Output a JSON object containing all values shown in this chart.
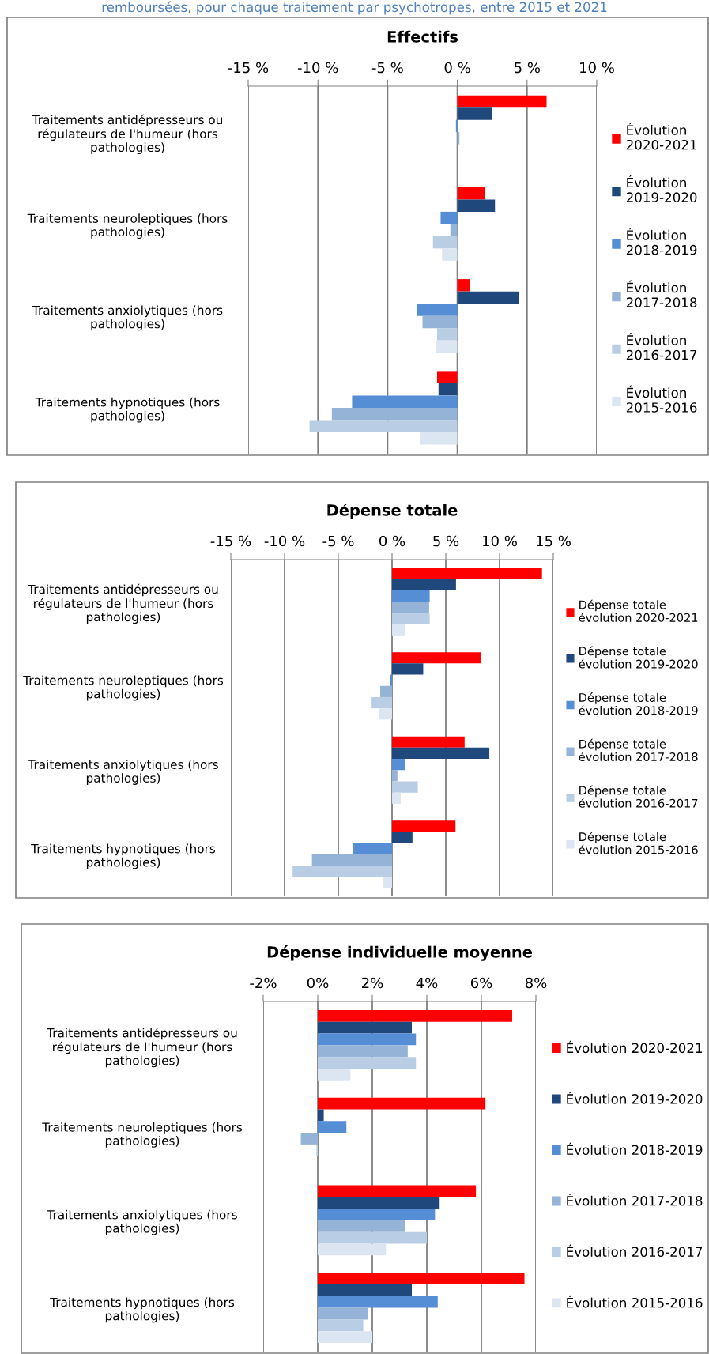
{
  "chart_data": [
    {
      "type": "bar",
      "orientation": "horizontal",
      "title": "Effectifs",
      "annotations": [
        "remboursées, pour chaque traitement par psychotropes, entre 2015 et 2021"
      ],
      "categories": [
        "Traitements antidépresseurs ou\nrégulateurs de l'humeur (hors\npathologies)",
        "Traitements neuroleptiques (hors\npathologies)",
        "Traitements anxiolytiques (hors\npathologies)",
        "Traitements hypnotiques (hors\npathologies)"
      ],
      "series": [
        {
          "name": "Évolution\n2020-2021",
          "color": "#ff0000",
          "values": [
            6.4,
            2.0,
            0.9,
            -1.45
          ]
        },
        {
          "name": "Évolution\n2019-2020",
          "color": "#1f497d",
          "values": [
            2.5,
            2.7,
            4.4,
            -1.35
          ]
        },
        {
          "name": "Évolution\n2018-2019",
          "color": "#558ed5",
          "values": [
            -0.1,
            -1.2,
            -2.9,
            -7.55
          ]
        },
        {
          "name": "Évolution\n2017-2018",
          "color": "#95b3d7",
          "values": [
            0.15,
            -0.5,
            -2.5,
            -9.0
          ]
        },
        {
          "name": "Évolution\n2016-2017",
          "color": "#b9cde5",
          "values": [
            0,
            -1.75,
            -1.45,
            -10.6
          ]
        },
        {
          "name": "Évolution\n2015-2016",
          "color": "#dce6f2",
          "values": [
            null,
            -1.1,
            -1.55,
            -2.7
          ]
        }
      ],
      "xlim": [
        -15,
        10
      ],
      "xticks": [
        {
          "value": -15,
          "label": "-15 %"
        },
        {
          "value": -10,
          "label": "-10 %"
        },
        {
          "value": -5,
          "label": "-5 %"
        },
        {
          "value": 0,
          "label": "0 %"
        },
        {
          "value": 5,
          "label": "5 %"
        },
        {
          "value": 10,
          "label": "10 %"
        }
      ],
      "grid": "x",
      "legend": "right"
    },
    {
      "type": "bar",
      "orientation": "horizontal",
      "title": "Dépense totale",
      "categories": [
        "Traitements antidépresseurs ou\nrégulateurs de l'humeur (hors\npathologies)",
        "Traitements neuroleptiques (hors\npathologies)",
        "Traitements anxiolytiques (hors\npathologies)",
        "Traitements hypnotiques (hors\npathologies)"
      ],
      "series": [
        {
          "name": "Dépense totale\névolution 2020-2021",
          "color": "#ff0000",
          "values": [
            13.95,
            8.25,
            6.75,
            5.9
          ]
        },
        {
          "name": "Dépense totale\névolution 2019-2020",
          "color": "#1f497d",
          "values": [
            5.95,
            2.9,
            9.05,
            1.9
          ]
        },
        {
          "name": "Dépense totale\névolution 2018-2019",
          "color": "#558ed5",
          "values": [
            3.5,
            -0.2,
            1.2,
            -3.6
          ]
        },
        {
          "name": "Dépense totale\névolution 2017-2018",
          "color": "#95b3d7",
          "values": [
            3.45,
            -1.1,
            0.5,
            -7.45
          ]
        },
        {
          "name": "Dépense totale\névolution 2016-2017",
          "color": "#b9cde5",
          "values": [
            3.5,
            -1.9,
            2.4,
            -9.25
          ]
        },
        {
          "name": "Dépense totale\névolution 2015-2016",
          "color": "#dce6f2",
          "values": [
            1.25,
            -1.2,
            0.8,
            -0.8
          ]
        }
      ],
      "xlim": [
        -15,
        15
      ],
      "xticks": [
        {
          "value": -15,
          "label": "-15 %"
        },
        {
          "value": -10,
          "label": "-10 %"
        },
        {
          "value": -5,
          "label": "-5 %"
        },
        {
          "value": 0,
          "label": "0 %"
        },
        {
          "value": 5,
          "label": "5 %"
        },
        {
          "value": 10,
          "label": "10 %"
        },
        {
          "value": 15,
          "label": "15 %"
        }
      ],
      "grid": "x",
      "legend": "right"
    },
    {
      "type": "bar",
      "orientation": "horizontal",
      "title": "Dépense individuelle moyenne",
      "categories": [
        "Traitements antidépresseurs ou\nrégulateurs de l'humeur (hors\npathologies)",
        "Traitements neuroleptiques (hors\npathologies)",
        "Traitements anxiolytiques (hors\npathologies)",
        "Traitements hypnotiques (hors\npathologies)"
      ],
      "series": [
        {
          "name": "Évolution 2020-2021",
          "color": "#ff0000",
          "values": [
            7.13,
            6.15,
            5.8,
            7.58
          ]
        },
        {
          "name": "Évolution 2019-2020",
          "color": "#1f497d",
          "values": [
            3.45,
            0.22,
            4.47,
            3.45
          ]
        },
        {
          "name": "Évolution 2018-2019",
          "color": "#558ed5",
          "values": [
            3.6,
            1.05,
            4.3,
            4.4
          ]
        },
        {
          "name": "Évolution 2017-2018",
          "color": "#95b3d7",
          "values": [
            3.3,
            -0.62,
            3.2,
            1.85
          ]
        },
        {
          "name": "Évolution 2016-2017",
          "color": "#b9cde5",
          "values": [
            3.6,
            -0.05,
            4.0,
            1.67
          ]
        },
        {
          "name": "Évolution 2015-2016",
          "color": "#dce6f2",
          "values": [
            1.2,
            0,
            2.5,
            2.0
          ]
        }
      ],
      "xlim": [
        -2,
        8
      ],
      "xticks": [
        {
          "value": -2,
          "label": "-2%"
        },
        {
          "value": 0,
          "label": "0%"
        },
        {
          "value": 2,
          "label": "2%"
        },
        {
          "value": 4,
          "label": "4%"
        },
        {
          "value": 6,
          "label": "6%"
        },
        {
          "value": 8,
          "label": "8%"
        }
      ],
      "grid": "x",
      "legend": "right"
    }
  ]
}
